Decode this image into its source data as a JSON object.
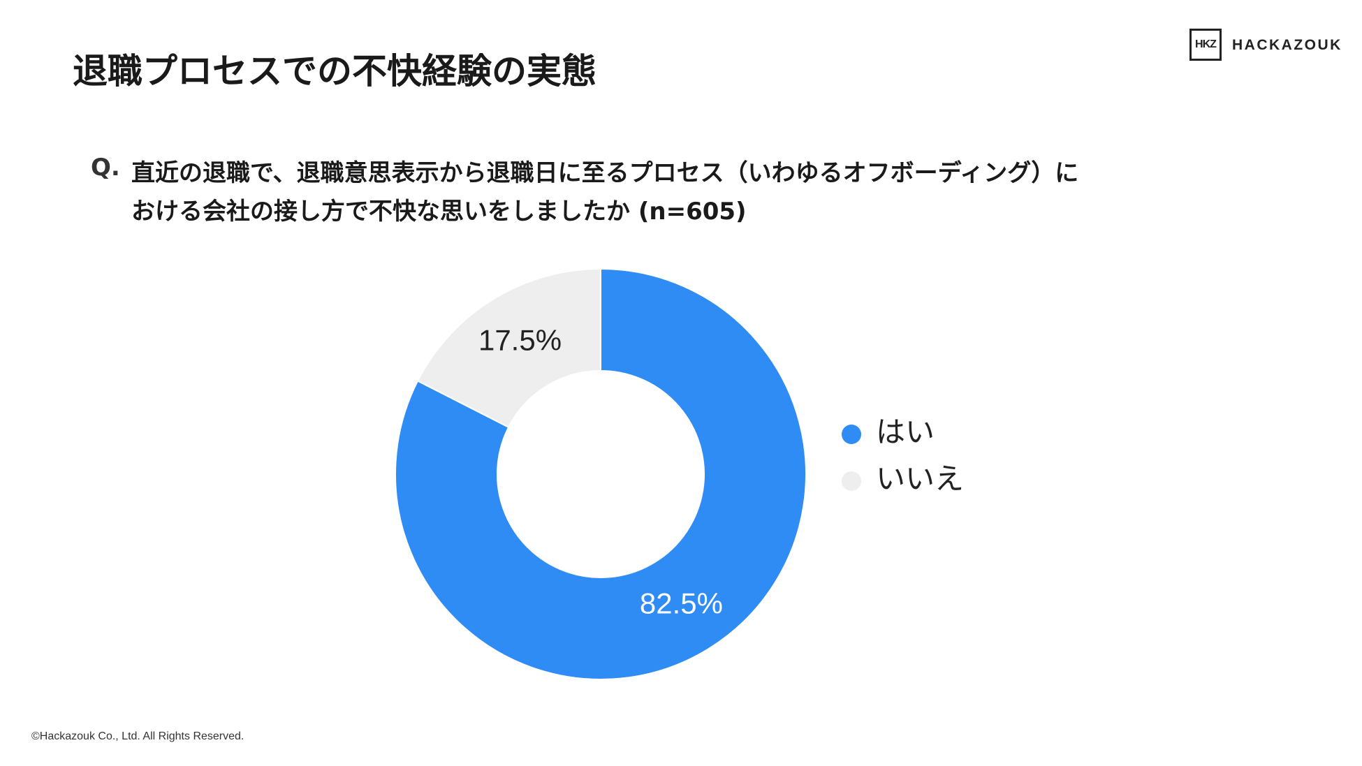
{
  "title": "退職プロセスでの不快経験の実態",
  "logo": {
    "mark": "HKZ",
    "name": "HACKAZOUK"
  },
  "question": {
    "label": "Q.",
    "lines": [
      "直近の退職で、退職意思表示から退職日に至るプロセス（いわゆるオフボーディング）に",
      "おける会社の接し方で不快な思いをしましたか (n=605)"
    ]
  },
  "chart_data": {
    "type": "pie",
    "categories": [
      "はい",
      "いいえ"
    ],
    "values": [
      82.5,
      17.5
    ],
    "value_labels": [
      "82.5%",
      "17.5%"
    ],
    "colors": [
      "#2f8cf5",
      "#eeeeee"
    ],
    "label_colors": [
      "#ffffff",
      "#222222"
    ],
    "legend": "right"
  },
  "footer": "©Hackazouk Co., Ltd. All Rights Reserved."
}
